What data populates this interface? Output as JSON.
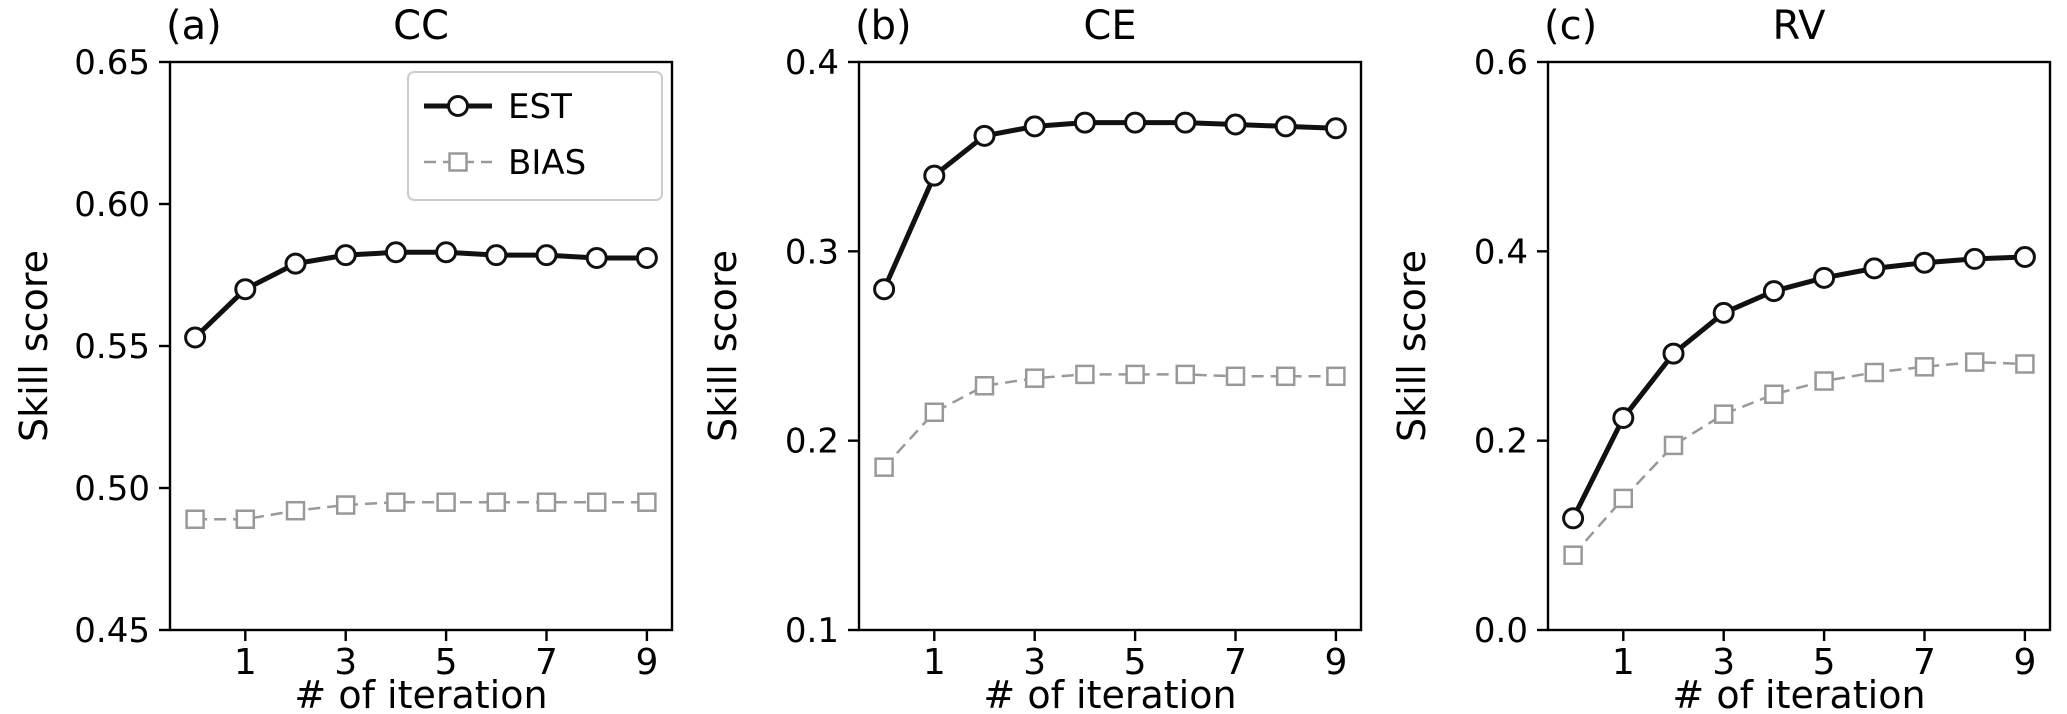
{
  "figure": {
    "background": "#ffffff",
    "axis_color": "#000000",
    "text_color": "#000000"
  },
  "chart_data": [
    {
      "type": "line",
      "panel_label": "(a)",
      "title": "CC",
      "xlabel": "# of iteration",
      "ylabel": "Skill score",
      "x": [
        0,
        1,
        2,
        3,
        4,
        5,
        6,
        7,
        8,
        9
      ],
      "xlim": [
        -0.5,
        9.5
      ],
      "xticks": [
        1,
        3,
        5,
        7,
        9
      ],
      "ylim": [
        0.45,
        0.65
      ],
      "yticks": [
        0.45,
        0.5,
        0.55,
        0.6,
        0.65
      ],
      "ytick_labels": [
        "0.45",
        "0.50",
        "0.55",
        "0.60",
        "0.65"
      ],
      "grid": false,
      "legend": {
        "show": true,
        "position": "upper right"
      },
      "series": [
        {
          "name": "EST",
          "color": "#111111",
          "line": "solid",
          "line_width": 5,
          "marker": "circle",
          "values": [
            0.553,
            0.57,
            0.579,
            0.582,
            0.583,
            0.583,
            0.582,
            0.582,
            0.581,
            0.581
          ]
        },
        {
          "name": "BIAS",
          "color": "#999999",
          "line": "dashed",
          "line_width": 2.5,
          "marker": "square",
          "values": [
            0.489,
            0.489,
            0.492,
            0.494,
            0.495,
            0.495,
            0.495,
            0.495,
            0.495,
            0.495
          ]
        }
      ]
    },
    {
      "type": "line",
      "panel_label": "(b)",
      "title": "CE",
      "xlabel": "# of iteration",
      "ylabel": "Skill score",
      "x": [
        0,
        1,
        2,
        3,
        4,
        5,
        6,
        7,
        8,
        9
      ],
      "xlim": [
        -0.5,
        9.5
      ],
      "xticks": [
        1,
        3,
        5,
        7,
        9
      ],
      "ylim": [
        0.1,
        0.4
      ],
      "yticks": [
        0.1,
        0.2,
        0.3,
        0.4
      ],
      "ytick_labels": [
        "0.1",
        "0.2",
        "0.3",
        "0.4"
      ],
      "grid": false,
      "legend": {
        "show": false
      },
      "series": [
        {
          "name": "EST",
          "color": "#111111",
          "line": "solid",
          "line_width": 5,
          "marker": "circle",
          "values": [
            0.28,
            0.34,
            0.361,
            0.366,
            0.368,
            0.368,
            0.368,
            0.367,
            0.366,
            0.365
          ]
        },
        {
          "name": "BIAS",
          "color": "#999999",
          "line": "dashed",
          "line_width": 2.5,
          "marker": "square",
          "values": [
            0.186,
            0.215,
            0.229,
            0.233,
            0.235,
            0.235,
            0.235,
            0.234,
            0.234,
            0.234
          ]
        }
      ]
    },
    {
      "type": "line",
      "panel_label": "(c)",
      "title": "RV",
      "xlabel": "# of iteration",
      "ylabel": "Skill score",
      "x": [
        0,
        1,
        2,
        3,
        4,
        5,
        6,
        7,
        8,
        9
      ],
      "xlim": [
        -0.5,
        9.5
      ],
      "xticks": [
        1,
        3,
        5,
        7,
        9
      ],
      "ylim": [
        0.0,
        0.6
      ],
      "yticks": [
        0.0,
        0.2,
        0.4,
        0.6
      ],
      "ytick_labels": [
        "0.0",
        "0.2",
        "0.4",
        "0.6"
      ],
      "grid": false,
      "legend": {
        "show": false
      },
      "series": [
        {
          "name": "EST",
          "color": "#111111",
          "line": "solid",
          "line_width": 5,
          "marker": "circle",
          "values": [
            0.118,
            0.224,
            0.292,
            0.335,
            0.358,
            0.372,
            0.382,
            0.388,
            0.392,
            0.394
          ]
        },
        {
          "name": "BIAS",
          "color": "#999999",
          "line": "dashed",
          "line_width": 2.5,
          "marker": "square",
          "values": [
            0.079,
            0.139,
            0.195,
            0.228,
            0.249,
            0.263,
            0.272,
            0.278,
            0.283,
            0.281
          ]
        }
      ]
    }
  ]
}
